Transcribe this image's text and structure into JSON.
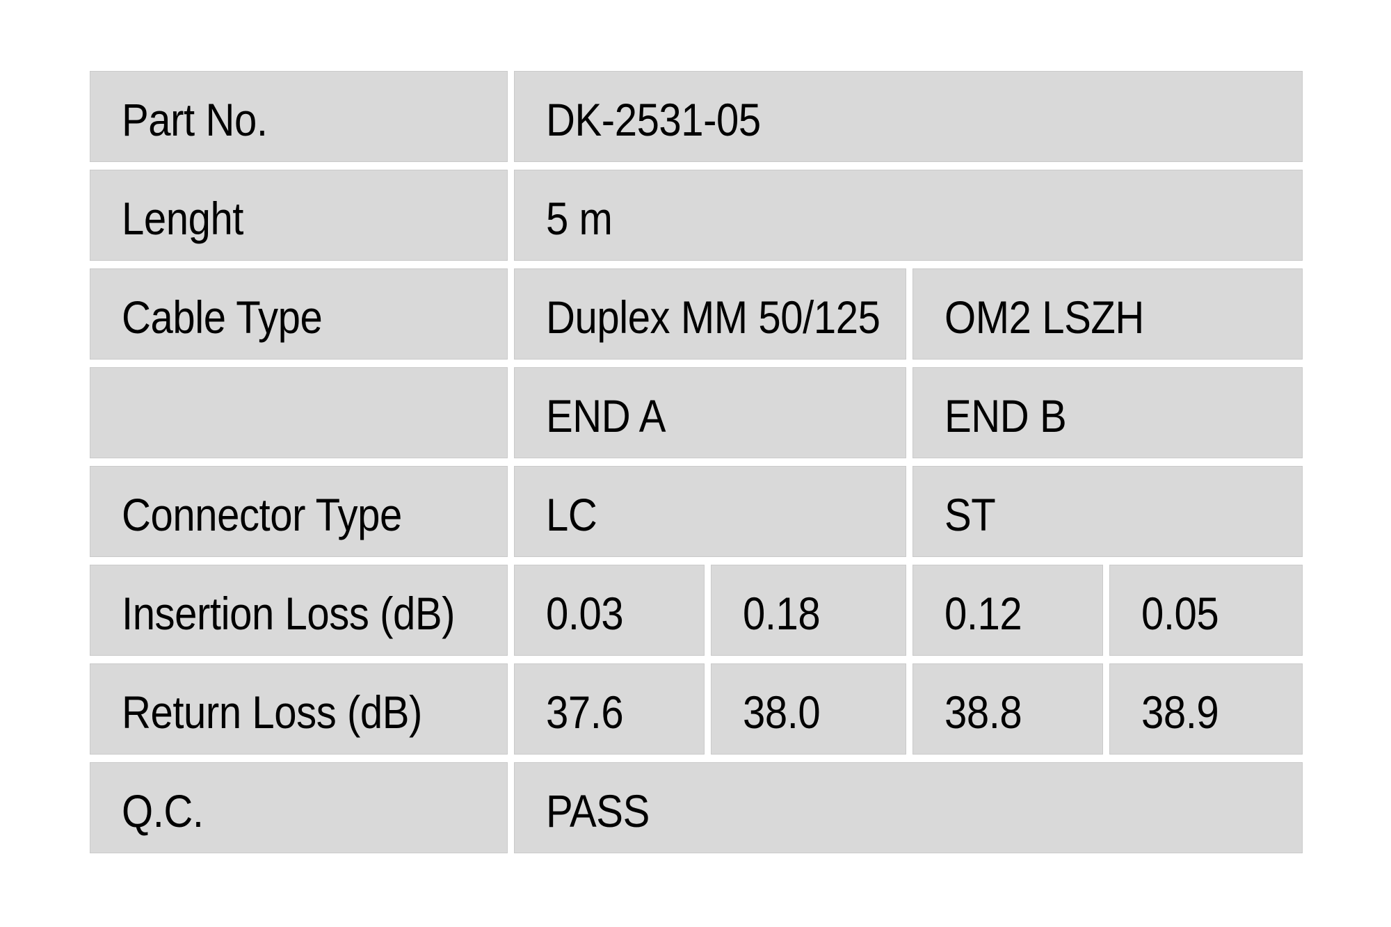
{
  "table": {
    "rows": [
      {
        "label": "Part No.",
        "value": "DK-2531-05"
      },
      {
        "label": "Lenght",
        "value": "5 m"
      },
      {
        "label": "Cable Type",
        "end_a": "Duplex MM 50/125",
        "end_b": "OM2 LSZH"
      },
      {
        "label": "",
        "end_a": "END A",
        "end_b": "END B"
      },
      {
        "label": "Connector Type",
        "end_a": "LC",
        "end_b": "ST"
      },
      {
        "label": "Insertion Loss (dB)",
        "values": [
          "0.03",
          "0.18",
          "0.12",
          "0.05"
        ]
      },
      {
        "label": "Return Loss (dB)",
        "values": [
          "37.6",
          "38.0",
          "38.8",
          "38.9"
        ]
      },
      {
        "label": "Q.C.",
        "value": "PASS"
      }
    ]
  },
  "colors": {
    "page_bg": "#ffffff",
    "cell_bg": "#d9d9d9",
    "cell_border": "#cacaca",
    "text": "#000000"
  }
}
